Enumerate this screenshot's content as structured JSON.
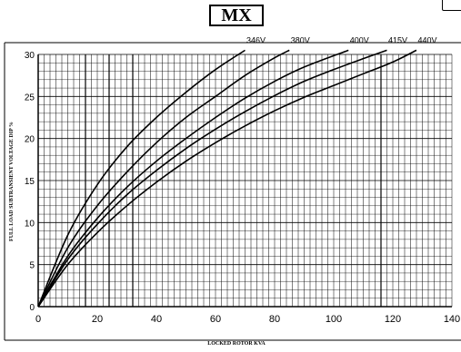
{
  "chart_data": {
    "type": "line",
    "title": "MX",
    "xlabel": "LOCKED ROTOR KVA",
    "ylabel": "FULL LOAD SUBTRANSIENT VOLTAGE DIP %",
    "xlim": [
      0,
      140
    ],
    "ylim": [
      0,
      30
    ],
    "x_ticks": [
      0,
      20,
      40,
      60,
      80,
      100,
      120,
      140
    ],
    "y_ticks": [
      0,
      5,
      10,
      15,
      20,
      25,
      30
    ],
    "grid": true,
    "series": [
      {
        "name": "346V",
        "points": [
          [
            0,
            0
          ],
          [
            10,
            8.5
          ],
          [
            20,
            14.5
          ],
          [
            30,
            19
          ],
          [
            40,
            22.5
          ],
          [
            50,
            25.5
          ],
          [
            60,
            28.2
          ],
          [
            70,
            30.5
          ]
        ]
      },
      {
        "name": "380V",
        "points": [
          [
            0,
            0
          ],
          [
            10,
            7
          ],
          [
            20,
            12
          ],
          [
            30,
            16
          ],
          [
            40,
            19.5
          ],
          [
            50,
            22.5
          ],
          [
            60,
            25
          ],
          [
            70,
            27.5
          ],
          [
            80,
            29.6
          ],
          [
            85,
            30.5
          ]
        ]
      },
      {
        "name": "400V",
        "points": [
          [
            0,
            0
          ],
          [
            10,
            6
          ],
          [
            20,
            10.5
          ],
          [
            30,
            14.2
          ],
          [
            40,
            17.3
          ],
          [
            50,
            20
          ],
          [
            60,
            22.5
          ],
          [
            70,
            24.8
          ],
          [
            80,
            26.8
          ],
          [
            90,
            28.5
          ],
          [
            105,
            30.5
          ]
        ]
      },
      {
        "name": "415V",
        "points": [
          [
            0,
            0
          ],
          [
            10,
            5.6
          ],
          [
            20,
            9.8
          ],
          [
            30,
            13.3
          ],
          [
            40,
            16.2
          ],
          [
            50,
            18.8
          ],
          [
            60,
            21.1
          ],
          [
            70,
            23.2
          ],
          [
            80,
            25.1
          ],
          [
            90,
            26.8
          ],
          [
            100,
            28.2
          ],
          [
            110,
            29.5
          ],
          [
            118,
            30.5
          ]
        ]
      },
      {
        "name": "440V",
        "points": [
          [
            0,
            0
          ],
          [
            10,
            5
          ],
          [
            20,
            8.8
          ],
          [
            30,
            12
          ],
          [
            40,
            14.8
          ],
          [
            50,
            17.3
          ],
          [
            60,
            19.5
          ],
          [
            70,
            21.5
          ],
          [
            80,
            23.3
          ],
          [
            90,
            24.9
          ],
          [
            100,
            26.3
          ],
          [
            110,
            27.7
          ],
          [
            120,
            29.1
          ],
          [
            128,
            30.5
          ]
        ]
      }
    ]
  }
}
